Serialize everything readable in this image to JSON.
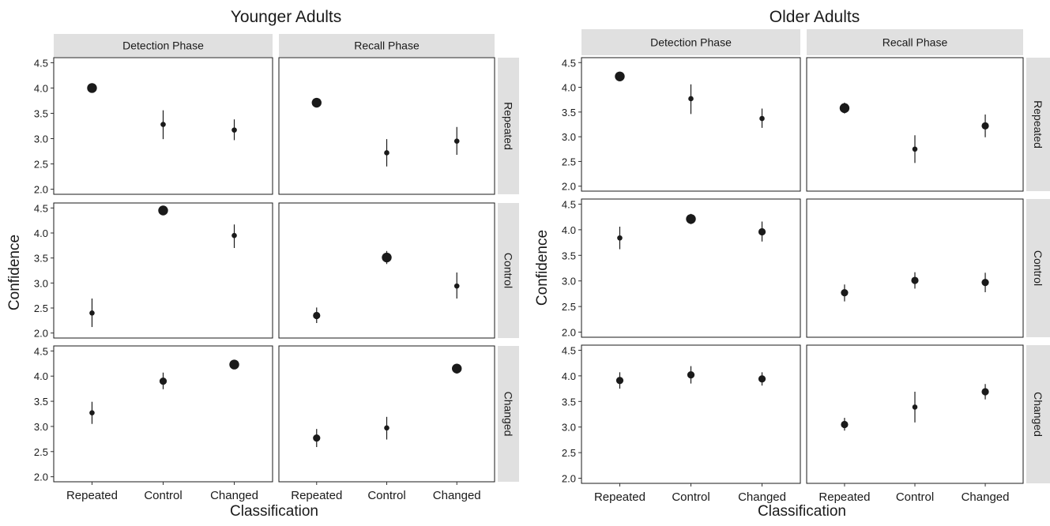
{
  "chart_data": {
    "type": "scatter",
    "shared": {
      "categories": [
        "Repeated",
        "Control",
        "Changed"
      ],
      "xlabel": "Classification",
      "ylabel": "Confidence",
      "ylim": [
        1.9,
        4.6
      ],
      "yticks": [
        "2.0",
        "2.5",
        "3.0",
        "3.5",
        "4.0",
        "4.5"
      ],
      "columns": [
        "Detection Phase",
        "Recall Phase"
      ],
      "rows": [
        "Repeated",
        "Control",
        "Changed"
      ],
      "grid": false,
      "marker_color": "#1a1a1a",
      "strip_color": "#e0e0e0"
    },
    "groups": [
      {
        "title": "Younger Adults",
        "panels": [
          [
            {
              "values": [
                4.0,
                3.28,
                3.17
              ],
              "err_low": [
                4.0,
                2.99,
                2.97
              ],
              "err_high": [
                4.0,
                3.56,
                3.38
              ],
              "size": [
                3,
                1,
                1
              ]
            },
            {
              "values": [
                3.71,
                2.72,
                2.95
              ],
              "err_low": [
                3.71,
                2.45,
                2.68
              ],
              "err_high": [
                3.71,
                2.99,
                3.23
              ],
              "size": [
                3,
                1,
                1
              ]
            }
          ],
          [
            {
              "values": [
                2.4,
                4.45,
                3.95
              ],
              "err_low": [
                2.12,
                4.45,
                3.7
              ],
              "err_high": [
                2.69,
                4.45,
                4.17
              ],
              "size": [
                1,
                3,
                1
              ]
            },
            {
              "values": [
                2.35,
                3.51,
                2.94
              ],
              "err_low": [
                2.2,
                3.38,
                2.69
              ],
              "err_high": [
                2.51,
                3.64,
                3.21
              ],
              "size": [
                2,
                3,
                1
              ]
            }
          ],
          [
            {
              "values": [
                3.27,
                3.9,
                4.23
              ],
              "err_low": [
                3.05,
                3.74,
                4.16
              ],
              "err_high": [
                3.49,
                4.07,
                4.3
              ],
              "size": [
                1,
                2,
                3
              ]
            },
            {
              "values": [
                2.77,
                2.97,
                4.15
              ],
              "err_low": [
                2.59,
                2.74,
                4.05
              ],
              "err_high": [
                2.95,
                3.19,
                4.24
              ],
              "size": [
                2,
                1,
                3
              ]
            }
          ]
        ]
      },
      {
        "title": "Older Adults",
        "panels": [
          [
            {
              "values": [
                4.22,
                3.77,
                3.37
              ],
              "err_low": [
                4.15,
                3.46,
                3.18
              ],
              "err_high": [
                4.28,
                4.06,
                3.57
              ],
              "size": [
                3,
                1,
                1
              ]
            },
            {
              "values": [
                3.58,
                2.75,
                3.22
              ],
              "err_low": [
                3.47,
                2.47,
                2.99
              ],
              "err_high": [
                3.69,
                3.03,
                3.45
              ],
              "size": [
                3,
                1,
                2
              ]
            }
          ],
          [
            {
              "values": [
                3.84,
                4.21,
                3.96
              ],
              "err_low": [
                3.62,
                4.11,
                3.77
              ],
              "err_high": [
                4.06,
                4.31,
                4.16
              ],
              "size": [
                1,
                3,
                2
              ]
            },
            {
              "values": [
                2.77,
                3.01,
                2.97
              ],
              "err_low": [
                2.6,
                2.85,
                2.78
              ],
              "err_high": [
                2.93,
                3.17,
                3.16
              ],
              "size": [
                2,
                2,
                2
              ]
            }
          ],
          [
            {
              "values": [
                3.91,
                4.02,
                3.94
              ],
              "err_low": [
                3.75,
                3.85,
                3.81
              ],
              "err_high": [
                4.07,
                4.19,
                4.07
              ],
              "size": [
                2,
                2,
                2
              ]
            },
            {
              "values": [
                3.05,
                3.39,
                3.69
              ],
              "err_low": [
                2.93,
                3.09,
                3.54
              ],
              "err_high": [
                3.18,
                3.69,
                3.84
              ],
              "size": [
                2,
                1,
                2
              ]
            }
          ]
        ]
      }
    ]
  }
}
